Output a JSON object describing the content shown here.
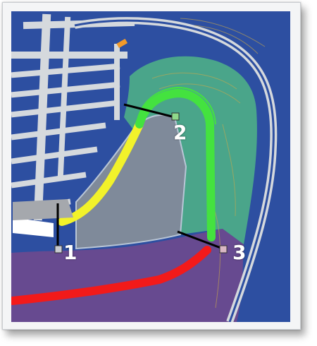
{
  "map": {
    "colors": {
      "water": "#2d4fa1",
      "road": "#d5d9dd",
      "green_zone": "#4aa58a",
      "purple_zone": "#6a4a8f",
      "grey_zone": "#7f8a9a",
      "green_path": "#44e23f",
      "yellow_path": "#f2f22a",
      "red_path": "#f21a1a",
      "contour": "#c9a84b"
    },
    "markers": [
      {
        "id": "1",
        "label": "1"
      },
      {
        "id": "2",
        "label": "2"
      },
      {
        "id": "3",
        "label": "3"
      }
    ]
  }
}
